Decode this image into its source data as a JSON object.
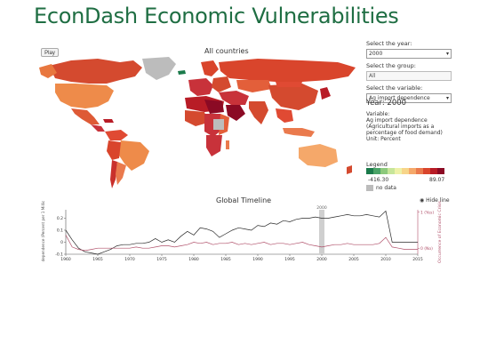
{
  "title": "EconDash Economic Vulnerabilities",
  "play_label": "Play",
  "map": {
    "title": "All countries"
  },
  "controls": {
    "year_label": "Select the year:",
    "year_value": "2000",
    "group_label": "Select the group:",
    "group_value": "All",
    "variable_label": "Select the variable:",
    "variable_value": "Ag import dependence"
  },
  "year_display": "Year: 2000",
  "variable_heading": "Variable:",
  "variable_name": "Ag import dependence",
  "variable_description": "(Agricultural imports as a percentage of food demand)",
  "unit": "Unit: Percent",
  "legend": {
    "label": "Legend",
    "min": "-416.30",
    "max": "89.07",
    "nodata": "no data",
    "colors": [
      "#1a7a4a",
      "#4aa367",
      "#8cc97c",
      "#c7e59a",
      "#eef1a8",
      "#f7d58a",
      "#f5a86a",
      "#ea7a4d",
      "#d9452c",
      "#b81c26",
      "#8b0a24"
    ]
  },
  "timeline": {
    "title": "Global Timeline",
    "hide_label": "Hide line",
    "marker_label": "2000",
    "y_left_title": "Ag import dependence (Percent per 1 Million people)",
    "y_right_title": "Occurrence of Economic Crisis",
    "right_ticks": [
      "1 (Yes)",
      "0 (No)"
    ],
    "left_ticks": [
      "0.2",
      "0.1",
      "0",
      "-0.1"
    ],
    "x_ticks": [
      "1960",
      "1965",
      "1970",
      "1975",
      "1980",
      "1985",
      "1990",
      "1995",
      "2000",
      "2005",
      "2010",
      "2015"
    ]
  },
  "chart_data": {
    "type": "line",
    "title": "Global Timeline",
    "xlim": [
      1960,
      2015
    ],
    "ylim": [
      -0.1,
      0.27
    ],
    "series": [
      {
        "name": "Ag import dependence",
        "color": "#2a2a2a",
        "x": [
          1960,
          1961,
          1962,
          1963,
          1964,
          1965,
          1966,
          1967,
          1968,
          1969,
          1970,
          1971,
          1972,
          1973,
          1974,
          1975,
          1976,
          1977,
          1978,
          1979,
          1980,
          1981,
          1982,
          1983,
          1984,
          1985,
          1986,
          1987,
          1988,
          1989,
          1990,
          1991,
          1992,
          1993,
          1994,
          1995,
          1996,
          1997,
          1998,
          1999,
          2000,
          2001,
          2002,
          2003,
          2004,
          2005,
          2006,
          2007,
          2008,
          2009,
          2010,
          2011,
          2012,
          2013,
          2014,
          2015
        ],
        "y": [
          0.1,
          0.02,
          -0.05,
          -0.08,
          -0.09,
          -0.1,
          -0.08,
          -0.06,
          -0.03,
          -0.02,
          -0.02,
          -0.01,
          -0.01,
          0.0,
          0.03,
          0.0,
          0.02,
          0.0,
          0.05,
          0.09,
          0.06,
          0.12,
          0.11,
          0.09,
          0.04,
          0.07,
          0.1,
          0.12,
          0.11,
          0.1,
          0.14,
          0.13,
          0.16,
          0.15,
          0.18,
          0.17,
          0.19,
          0.2,
          0.2,
          0.21,
          0.2,
          0.2,
          0.21,
          0.22,
          0.23,
          0.22,
          0.22,
          0.23,
          0.22,
          0.21,
          0.26,
          0.0,
          0.0,
          0.0,
          0.0,
          0.0
        ]
      },
      {
        "name": "Occurrence of Economic Crisis",
        "color": "#b0506a",
        "x": [
          1960,
          1961,
          1962,
          1963,
          1964,
          1965,
          1966,
          1967,
          1968,
          1969,
          1970,
          1971,
          1972,
          1973,
          1974,
          1975,
          1976,
          1977,
          1978,
          1979,
          1980,
          1981,
          1982,
          1983,
          1984,
          1985,
          1986,
          1987,
          1988,
          1989,
          1990,
          1991,
          1992,
          1993,
          1994,
          1995,
          1996,
          1997,
          1998,
          1999,
          2000,
          2001,
          2002,
          2003,
          2004,
          2005,
          2006,
          2007,
          2008,
          2009,
          2010,
          2011,
          2012,
          2013,
          2014,
          2015
        ],
        "y": [
          0.06,
          -0.04,
          -0.06,
          -0.07,
          -0.06,
          -0.05,
          -0.05,
          -0.05,
          -0.05,
          -0.05,
          -0.05,
          -0.04,
          -0.05,
          -0.05,
          -0.04,
          -0.03,
          -0.03,
          -0.04,
          -0.03,
          -0.02,
          0.0,
          -0.01,
          0.0,
          -0.02,
          -0.01,
          -0.01,
          0.0,
          -0.02,
          -0.01,
          -0.02,
          -0.01,
          0.0,
          -0.02,
          -0.01,
          -0.01,
          -0.02,
          -0.01,
          0.0,
          -0.02,
          -0.03,
          -0.04,
          -0.03,
          -0.02,
          -0.02,
          -0.01,
          -0.02,
          -0.02,
          -0.02,
          -0.02,
          -0.01,
          0.04,
          -0.04,
          -0.05,
          -0.06,
          -0.06,
          -0.06
        ]
      }
    ]
  }
}
